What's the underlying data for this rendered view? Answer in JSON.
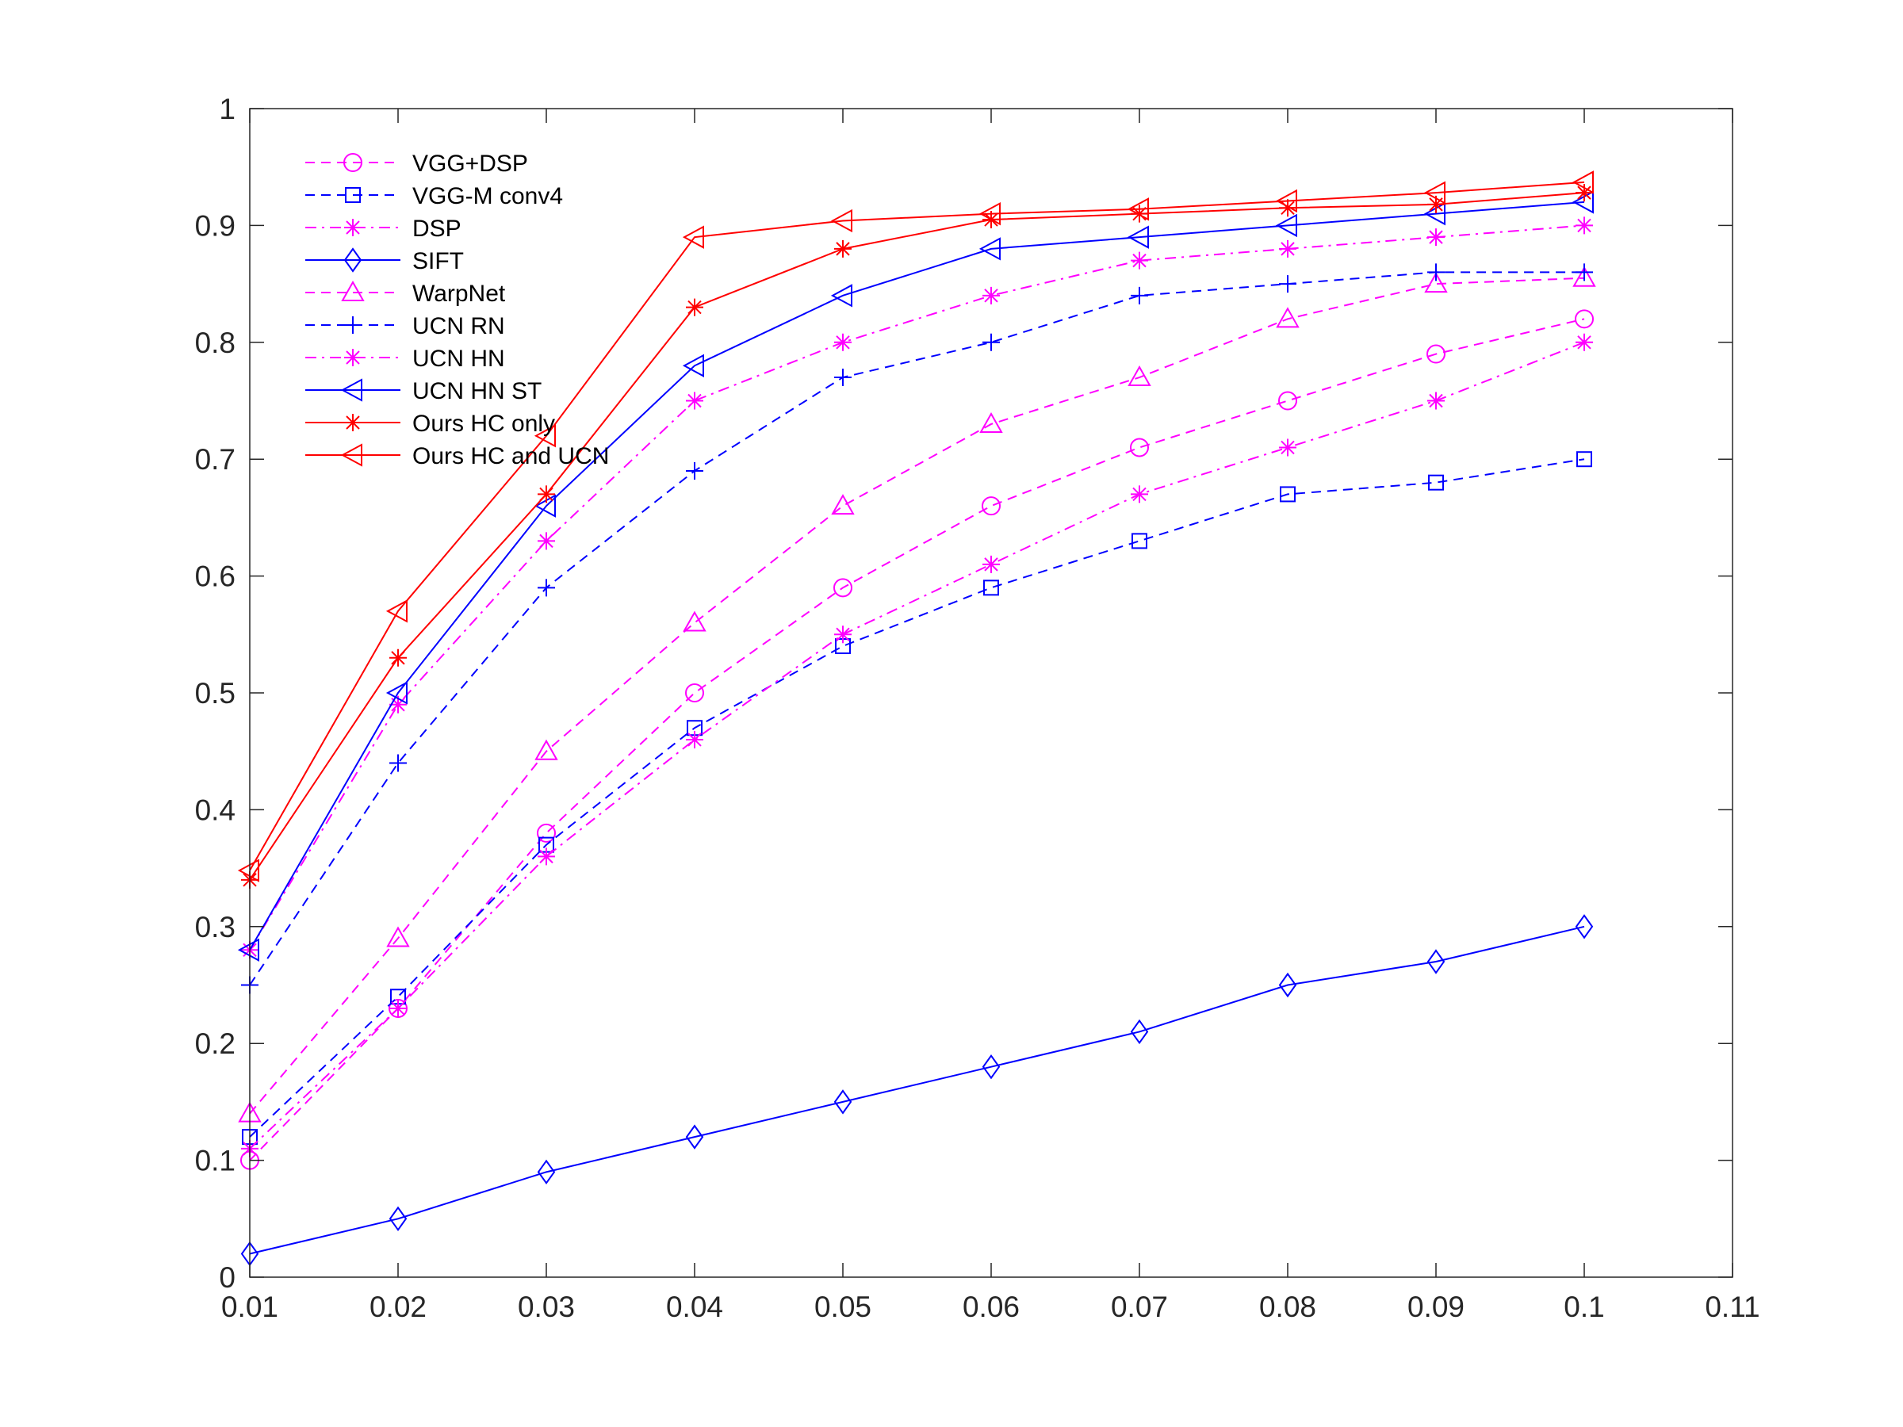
{
  "chart_data": {
    "type": "line",
    "title": "",
    "xlabel": "",
    "ylabel": "",
    "xlim": [
      0.01,
      0.11
    ],
    "ylim": [
      0,
      1
    ],
    "grid": false,
    "legend_position": "top-left",
    "x_ticks": [
      "0.01",
      "0.02",
      "0.03",
      "0.04",
      "0.05",
      "0.06",
      "0.07",
      "0.08",
      "0.09",
      "0.1",
      "0.11"
    ],
    "x_tick_values": [
      0.01,
      0.02,
      0.03,
      0.04,
      0.05,
      0.06,
      0.07,
      0.08,
      0.09,
      0.1,
      0.11
    ],
    "y_ticks": [
      "0",
      "0.1",
      "0.2",
      "0.3",
      "0.4",
      "0.5",
      "0.6",
      "0.7",
      "0.8",
      "0.9",
      "1"
    ],
    "y_tick_values": [
      0,
      0.1,
      0.2,
      0.3,
      0.4,
      0.5,
      0.6,
      0.7,
      0.8,
      0.9,
      1
    ],
    "x": [
      0.01,
      0.02,
      0.03,
      0.04,
      0.05,
      0.06,
      0.07,
      0.08,
      0.09,
      0.1
    ],
    "series": [
      {
        "name": "VGG+DSP",
        "color": "#ff00ff",
        "dash": "dashed",
        "marker": "circle",
        "values": [
          0.1,
          0.23,
          0.38,
          0.5,
          0.59,
          0.66,
          0.71,
          0.75,
          0.79,
          0.82
        ]
      },
      {
        "name": "VGG-M conv4",
        "color": "#0000ff",
        "dash": "dashed",
        "marker": "square",
        "values": [
          0.12,
          0.24,
          0.37,
          0.47,
          0.54,
          0.59,
          0.63,
          0.67,
          0.68,
          0.7
        ]
      },
      {
        "name": "DSP",
        "color": "#ff00ff",
        "dash": "dashdot",
        "marker": "asterisk",
        "values": [
          0.11,
          0.23,
          0.36,
          0.46,
          0.55,
          0.61,
          0.67,
          0.71,
          0.75,
          0.8
        ]
      },
      {
        "name": "SIFT",
        "color": "#0000ff",
        "dash": "solid",
        "marker": "diamond",
        "values": [
          0.02,
          0.05,
          0.09,
          0.12,
          0.15,
          0.18,
          0.21,
          0.25,
          0.27,
          0.3
        ]
      },
      {
        "name": "WarpNet",
        "color": "#ff00ff",
        "dash": "dashed",
        "marker": "triangle-up",
        "values": [
          0.14,
          0.29,
          0.45,
          0.56,
          0.66,
          0.73,
          0.77,
          0.82,
          0.85,
          0.855
        ]
      },
      {
        "name": "UCN RN",
        "color": "#0000ff",
        "dash": "dashed",
        "marker": "plus",
        "values": [
          0.25,
          0.44,
          0.59,
          0.69,
          0.77,
          0.8,
          0.84,
          0.85,
          0.86,
          0.86
        ]
      },
      {
        "name": "UCN HN",
        "color": "#ff00ff",
        "dash": "dashdot",
        "marker": "asterisk",
        "values": [
          0.28,
          0.49,
          0.63,
          0.75,
          0.8,
          0.84,
          0.87,
          0.88,
          0.89,
          0.9
        ]
      },
      {
        "name": "UCN HN ST",
        "color": "#0000ff",
        "dash": "solid",
        "marker": "triangle-left",
        "values": [
          0.28,
          0.5,
          0.66,
          0.78,
          0.84,
          0.88,
          0.89,
          0.9,
          0.91,
          0.92
        ]
      },
      {
        "name": "Ours HC only",
        "color": "#ff0000",
        "dash": "solid",
        "marker": "asterisk",
        "values": [
          0.34,
          0.53,
          0.67,
          0.83,
          0.88,
          0.905,
          0.91,
          0.915,
          0.918,
          0.928
        ]
      },
      {
        "name": "Ours HC and UCN",
        "color": "#ff0000",
        "dash": "solid",
        "marker": "triangle-left",
        "values": [
          0.348,
          0.57,
          0.72,
          0.89,
          0.904,
          0.91,
          0.914,
          0.921,
          0.928,
          0.937
        ]
      }
    ]
  }
}
